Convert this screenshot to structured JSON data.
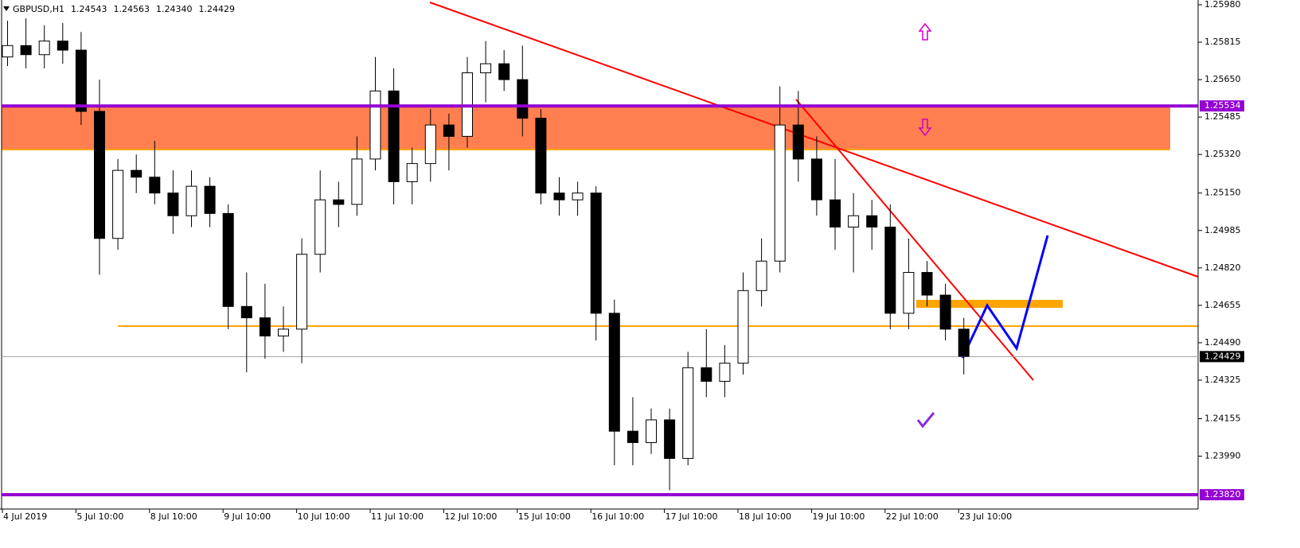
{
  "chart_data": {
    "type": "candlestick",
    "symbol": "GBPUSD,H1",
    "ohlc": [
      1.24543,
      1.24563,
      {
        "value": 1.2434,
        "label": "1.24340"
      },
      1.24429
    ],
    "categories": [
      "4 Jul 2019",
      null,
      null,
      null,
      "5 Jul 10:00",
      null,
      null,
      null,
      "8 Jul 10:00",
      null,
      null,
      null,
      "9 Jul 10:00",
      null,
      null,
      null,
      "10 Jul 10:00",
      null,
      null,
      null,
      "11 Jul 10:00",
      null,
      null,
      null,
      "12 Jul 10:00",
      null,
      null,
      null,
      "15 Jul 10:00",
      null,
      null,
      null,
      "16 Jul 10:00",
      null,
      null,
      null,
      "17 Jul 10:00",
      null,
      null,
      null,
      "18 Jul 10:00",
      null,
      null,
      null,
      "19 Jul 10:00",
      null,
      null,
      null,
      "22 Jul 10:00",
      null,
      null,
      null,
      "23 Jul 10:00"
    ],
    "open": [
      1.2575,
      1.258,
      1.2576,
      1.2582,
      1.2578,
      1.2551,
      1.2495,
      1.2525,
      1.2522,
      1.2515,
      1.2505,
      1.2518,
      1.2506,
      1.2465,
      1.246,
      1.2452,
      1.2455,
      1.2488,
      1.2512,
      1.251,
      1.253,
      1.256,
      1.252,
      1.2528,
      1.2545,
      1.254,
      1.2568,
      1.2572,
      1.2565,
      1.2548,
      1.2515,
      1.2512,
      1.2515,
      1.2462,
      1.241,
      1.2405,
      1.2415,
      1.2398,
      1.2438,
      1.2432,
      1.244,
      1.2472,
      1.2485,
      1.2545,
      1.253,
      1.2512,
      1.25,
      1.2505,
      1.25,
      1.2462,
      1.248,
      1.247,
      1.2455
    ],
    "high": [
      1.2591,
      1.2592,
      1.2589,
      1.259,
      1.2586,
      1.2565,
      1.253,
      1.2532,
      1.2538,
      1.2525,
      1.2525,
      1.2522,
      1.251,
      1.248,
      1.2475,
      1.2465,
      1.2495,
      1.2525,
      1.252,
      1.254,
      1.2575,
      1.257,
      1.2535,
      1.2552,
      1.255,
      1.2575,
      1.2582,
      1.2578,
      1.258,
      1.2552,
      1.2522,
      1.252,
      1.2518,
      1.2468,
      1.2425,
      1.242,
      1.242,
      1.2445,
      1.2455,
      1.2448,
      1.248,
      1.2495,
      1.2562,
      1.256,
      1.254,
      1.253,
      1.2515,
      1.2512,
      1.251,
      1.2495,
      1.2485,
      1.2475,
      1.246
    ],
    "low": [
      1.2571,
      1.257,
      1.257,
      1.2572,
      1.2545,
      1.2479,
      1.249,
      1.2515,
      1.251,
      1.2497,
      1.25,
      1.25,
      1.2455,
      1.2436,
      1.2442,
      1.2445,
      1.244,
      1.248,
      1.25,
      1.2505,
      1.2525,
      1.251,
      1.251,
      1.252,
      1.2525,
      1.2535,
      1.2555,
      1.256,
      1.254,
      1.251,
      1.2505,
      1.2505,
      1.245,
      1.2395,
      1.2395,
      1.24,
      1.2384,
      1.2395,
      1.2425,
      1.2425,
      1.2435,
      1.2465,
      1.248,
      1.252,
      1.2505,
      1.249,
      1.248,
      1.249,
      1.2455,
      1.2455,
      1.2465,
      1.245,
      1.2435
    ],
    "close": [
      1.258,
      1.2576,
      1.2582,
      1.2578,
      1.2551,
      1.2495,
      1.2525,
      1.2522,
      1.2515,
      1.2505,
      1.2518,
      1.2506,
      1.2465,
      1.246,
      1.2452,
      1.2455,
      1.2488,
      1.2512,
      1.251,
      1.253,
      1.256,
      1.252,
      1.2528,
      1.2545,
      1.254,
      1.2568,
      1.2572,
      1.2565,
      1.2548,
      1.2515,
      1.2512,
      1.2515,
      1.2462,
      1.241,
      1.2405,
      1.2415,
      1.2398,
      1.2438,
      1.2432,
      1.244,
      1.2472,
      1.2485,
      1.2545,
      1.253,
      1.2512,
      1.25,
      1.2505,
      1.25,
      1.2462,
      1.248,
      1.247,
      1.2455,
      1.2443
    ],
    "ylim": [
      1.23757,
      1.26001
    ],
    "yticks": [
      {
        "value": 1.2598,
        "label": "1.25980"
      },
      1.25815,
      {
        "value": 1.2565,
        "label": "1.25650"
      },
      1.25485,
      {
        "value": 1.2532,
        "label": "1.25320"
      },
      {
        "value": 1.2515,
        "label": "1.25150"
      },
      1.24985,
      {
        "value": 1.2482,
        "label": "1.24820"
      },
      1.24655,
      {
        "value": 1.2449,
        "label": "1.24490"
      },
      1.24325,
      1.24155,
      {
        "value": 1.2399,
        "label": "1.23990"
      }
    ],
    "levels": [
      1.25534,
      {
        "value": 1.2382,
        "label": "1.23820"
      }
    ],
    "level_color": "#9400d3",
    "current_price": 1.24429,
    "bull_color": "#ffffff",
    "bear_color": "#000000"
  }
}
